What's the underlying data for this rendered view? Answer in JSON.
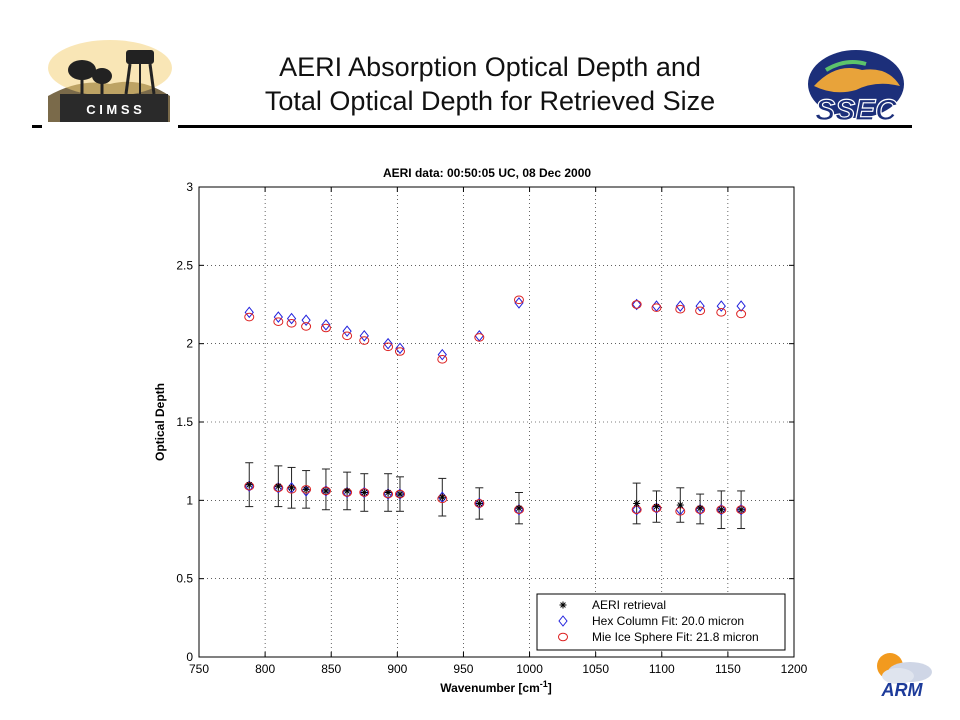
{
  "slide": {
    "title_line1": "AERI Absorption Optical Depth and",
    "title_line2": "Total Optical Depth for Retrieved Size"
  },
  "logos": {
    "left": "C I M S S",
    "right": "SSEC",
    "bottom_right": "ARM"
  },
  "chart_data": {
    "type": "scatter",
    "title": "AERI data: 00:50:05 UC, 08 Dec 2000",
    "xlabel": "Wavenumber [cm",
    "xlabel_sup": "-1",
    "xlabel_end": "]",
    "ylabel": "Optical Depth",
    "xlim": [
      750,
      1200
    ],
    "ylim": [
      0,
      3
    ],
    "xticks": [
      750,
      800,
      850,
      900,
      950,
      1000,
      1050,
      1100,
      1150,
      1200
    ],
    "yticks": [
      0,
      0.5,
      1,
      1.5,
      2,
      2.5,
      3
    ],
    "ytick_labels": [
      "0",
      "0.5",
      "1",
      "1.5",
      "2",
      "2.5",
      "3"
    ],
    "grid": true,
    "legend_position": "bottom-right",
    "x": [
      788,
      810,
      820,
      831,
      846,
      862,
      875,
      893,
      902,
      934,
      962,
      992,
      1081,
      1096,
      1114,
      1129,
      1145,
      1160
    ],
    "series": [
      {
        "name": "AERI retrieval",
        "marker": "asterisk",
        "color": "#000000",
        "values": [
          1.1,
          1.09,
          1.08,
          1.07,
          1.06,
          1.06,
          1.05,
          1.05,
          1.04,
          1.02,
          0.98,
          0.95,
          0.98,
          0.96,
          0.97,
          0.95,
          0.94,
          0.94
        ],
        "err_low": [
          0.96,
          0.96,
          0.95,
          0.95,
          0.94,
          0.94,
          0.93,
          0.93,
          0.93,
          0.9,
          0.88,
          0.85,
          0.85,
          0.86,
          0.86,
          0.85,
          0.82,
          0.82
        ],
        "err_high": [
          1.24,
          1.22,
          1.21,
          1.19,
          1.2,
          1.18,
          1.17,
          1.17,
          1.15,
          1.14,
          1.08,
          1.05,
          1.11,
          1.06,
          1.08,
          1.04,
          1.06,
          1.06
        ]
      },
      {
        "name": "Hex Column Fit:  20.0 micron",
        "marker": "diamond",
        "color": "#2222dd",
        "values": [
          2.2,
          2.17,
          2.16,
          2.15,
          2.12,
          2.08,
          2.05,
          2.0,
          1.97,
          1.93,
          2.05,
          2.26,
          2.25,
          2.24,
          2.24,
          2.24,
          2.24,
          2.24
        ],
        "lower_values": [
          1.09,
          1.08,
          1.08,
          1.06,
          1.06,
          1.05,
          1.05,
          1.04,
          1.04,
          1.02,
          0.98,
          0.94,
          0.94,
          0.95,
          0.94,
          0.94,
          0.94,
          0.94
        ]
      },
      {
        "name": "Mie Ice Sphere Fit:  21.8 micron",
        "marker": "circle",
        "color": "#dd2222",
        "values": [
          2.17,
          2.14,
          2.13,
          2.11,
          2.1,
          2.05,
          2.02,
          1.98,
          1.95,
          1.9,
          2.04,
          2.28,
          2.25,
          2.23,
          2.22,
          2.21,
          2.2,
          2.19
        ],
        "lower_values": [
          1.09,
          1.08,
          1.07,
          1.07,
          1.06,
          1.05,
          1.05,
          1.04,
          1.04,
          1.01,
          0.98,
          0.94,
          0.94,
          0.95,
          0.93,
          0.94,
          0.94,
          0.94
        ]
      }
    ]
  }
}
